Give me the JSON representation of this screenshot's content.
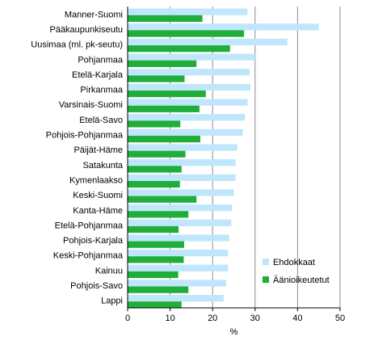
{
  "chart_data": {
    "type": "bar",
    "orientation": "horizontal",
    "categories": [
      "Manner-Suomi",
      "Pääkaupunkiseutu",
      "Uusimaa (ml. pk-seutu)",
      "Pohjanmaa",
      "Etelä-Karjala",
      "Pirkanmaa",
      "Varsinais-Suomi",
      "Etelä-Savo",
      "Pohjois-Pohjanmaa",
      "Päijät-Häme",
      "Satakunta",
      "Kymenlaakso",
      "Keski-Suomi",
      "Kanta-Häme",
      "Etelä-Pohjanmaa",
      "Pohjois-Karjala",
      "Keski-Pohjanmaa",
      "Kainuu",
      "Pohjois-Savo",
      "Lappi"
    ],
    "series": [
      {
        "name": "Ehdokkaat",
        "color": "#bfe6fb",
        "values": [
          28.2,
          45.0,
          37.6,
          30.0,
          28.7,
          28.9,
          28.2,
          27.6,
          27.1,
          25.8,
          25.4,
          25.4,
          25.0,
          24.6,
          24.4,
          23.9,
          23.6,
          23.6,
          23.2,
          22.6
        ]
      },
      {
        "name": "Äänioikeutetut",
        "color": "#1fae3a",
        "values": [
          17.6,
          27.4,
          24.1,
          16.2,
          13.4,
          18.4,
          16.9,
          12.4,
          17.1,
          13.6,
          12.7,
          12.3,
          16.2,
          14.3,
          12.0,
          13.3,
          13.2,
          11.9,
          14.3,
          12.7
        ]
      }
    ],
    "xlabel": "%",
    "xlim": [
      0,
      50
    ],
    "xticks": [
      0,
      10,
      20,
      30,
      40,
      50
    ],
    "gridlines": true,
    "legend_position": "bottom-right"
  }
}
